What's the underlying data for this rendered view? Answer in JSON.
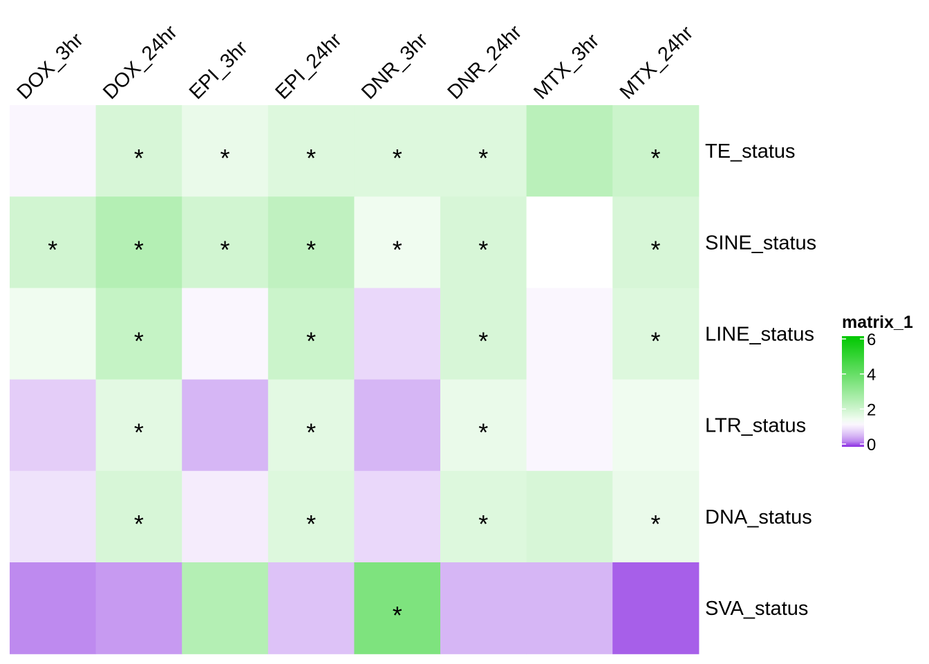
{
  "chart_data": {
    "type": "heatmap",
    "columns": [
      "DOX_3hr",
      "DOX_24hr",
      "EPI_3hr",
      "EPI_24hr",
      "DNR_3hr",
      "DNR_24hr",
      "MTX_3hr",
      "MTX_24hr"
    ],
    "rows": [
      "TE_status",
      "SINE_status",
      "LINE_status",
      "LTR_status",
      "DNA_status",
      "SVA_status"
    ],
    "values": [
      [
        1.2,
        1.9,
        1.6,
        1.8,
        1.8,
        1.8,
        2.4,
        2.1
      ],
      [
        2.0,
        2.5,
        2.0,
        2.3,
        1.5,
        1.9,
        1.3,
        1.9
      ],
      [
        1.5,
        2.2,
        1.2,
        2.1,
        0.9,
        1.9,
        1.2,
        1.8
      ],
      [
        0.8,
        1.7,
        0.6,
        1.7,
        0.6,
        1.6,
        1.2,
        1.5
      ],
      [
        1.0,
        1.9,
        1.1,
        1.8,
        0.9,
        1.8,
        1.9,
        1.6
      ],
      [
        0.3,
        0.4,
        2.5,
        0.7,
        3.5,
        0.6,
        0.6,
        0.1
      ]
    ],
    "significant": [
      [
        false,
        true,
        true,
        true,
        true,
        true,
        false,
        true
      ],
      [
        true,
        true,
        true,
        true,
        true,
        true,
        false,
        true
      ],
      [
        false,
        true,
        false,
        true,
        false,
        true,
        false,
        true
      ],
      [
        false,
        true,
        false,
        true,
        false,
        true,
        false,
        false
      ],
      [
        false,
        true,
        false,
        true,
        false,
        true,
        false,
        true
      ],
      [
        false,
        false,
        false,
        false,
        true,
        false,
        false,
        false
      ]
    ],
    "significance_mark": "*",
    "colorscale": {
      "min": 0,
      "mid": 1.3,
      "max": 6,
      "low": "#8a2be2",
      "midColor": "#ffffff",
      "high": "#00c800"
    },
    "legend": {
      "title": "matrix_1",
      "ticks": [
        "0",
        "2",
        "4",
        "6"
      ],
      "placement": "right"
    }
  }
}
